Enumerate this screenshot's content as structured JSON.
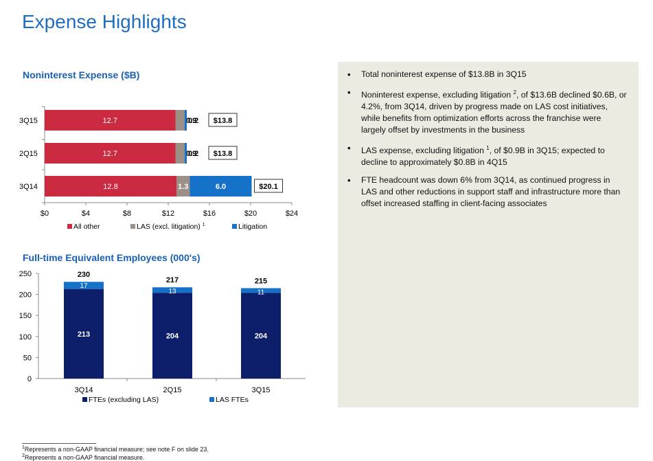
{
  "page": {
    "title": "Expense Highlights"
  },
  "chart_data": [
    {
      "type": "bar",
      "orientation": "horizontal",
      "stacked": true,
      "title": "Noninterest Expense ($B)",
      "categories": [
        "3Q15",
        "2Q15",
        "3Q14"
      ],
      "series": [
        {
          "name": "All other",
          "values": [
            12.7,
            12.7,
            12.8
          ],
          "labels": [
            "12.7",
            "12.7",
            "12.8"
          ],
          "color": "#cc2a41"
        },
        {
          "name": "LAS (excl. litigation)",
          "name_sup": "1",
          "values": [
            0.9,
            0.9,
            1.3
          ],
          "labels": [
            "0.9",
            "0.9",
            "1.3"
          ],
          "color": "#9c8f87"
        },
        {
          "name": "Litigation",
          "values": [
            0.2,
            0.2,
            6.0
          ],
          "labels": [
            "0.2",
            "0.2",
            "6.0"
          ],
          "color": "#1572c8"
        }
      ],
      "totals": [
        "$13.8",
        "$13.8",
        "$20.1"
      ],
      "xlim": [
        0,
        24
      ],
      "xticks": [
        0,
        4,
        8,
        12,
        16,
        20,
        24
      ],
      "xtick_labels": [
        "$0",
        "$4",
        "$8",
        "$12",
        "$16",
        "$20",
        "$24"
      ],
      "legend": "bottom",
      "grid": false
    },
    {
      "type": "bar",
      "orientation": "vertical",
      "stacked": true,
      "title": "Full-time Equivalent Employees (000's)",
      "categories": [
        "3Q14",
        "2Q15",
        "3Q15"
      ],
      "series": [
        {
          "name": "FTEs (excluding LAS)",
          "values": [
            213,
            204,
            204
          ],
          "labels": [
            "213",
            "204",
            "204"
          ],
          "color": "#0d1f6b"
        },
        {
          "name": "LAS FTEs",
          "values": [
            17,
            13,
            11
          ],
          "labels": [
            "17",
            "13",
            "11"
          ],
          "color": "#1572c8"
        }
      ],
      "totals": [
        "230",
        "217",
        "215"
      ],
      "ylim": [
        0,
        250
      ],
      "yticks": [
        0,
        50,
        100,
        150,
        200,
        250
      ],
      "ytick_labels": [
        "0",
        "50",
        "100",
        "150",
        "200",
        "250"
      ],
      "legend": "bottom",
      "grid": false
    }
  ],
  "panel": {
    "bullets": [
      {
        "text": "Total noninterest expense of $13.8B in 3Q15"
      },
      {
        "text_before": "Noninterest expense, excluding litigation ",
        "sup": "2",
        "text_after": ", of $13.6B declined $0.6B, or 4.2%, from 3Q14, driven by progress made on LAS cost initiatives, while benefits from optimization efforts across the franchise were largely offset by investments in the business"
      },
      {
        "text_before": "LAS expense, excluding litigation ",
        "sup": "1",
        "text_after": ", of $0.9B in 3Q15; expected to decline to approximately $0.8B in 4Q15"
      },
      {
        "text": "FTE headcount was down 6% from 3Q14, as continued progress in LAS and other reductions in support staff and infrastructure more than offset increased staffing in client-facing associates"
      }
    ]
  },
  "footnotes": [
    {
      "sup": "1",
      "text": "Represents a non-GAAP financial measure; see note F on slide 23."
    },
    {
      "sup": "2",
      "text": "Represents a non-GAAP financial measure."
    }
  ]
}
